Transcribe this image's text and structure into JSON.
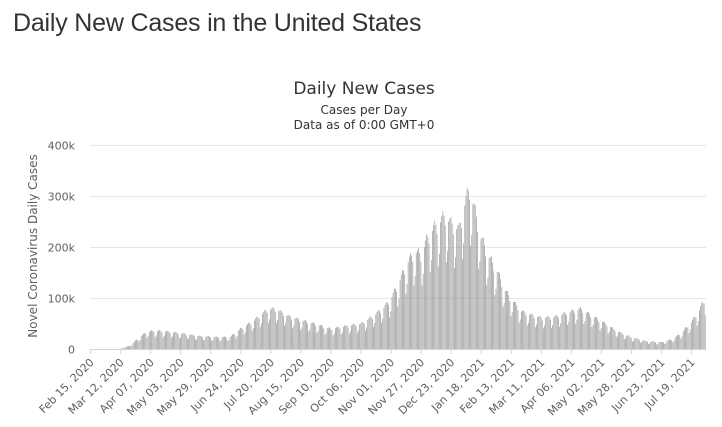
{
  "page": {
    "heading": "Daily New Cases in the United States"
  },
  "chart_data": {
    "type": "bar",
    "title": "Daily New Cases",
    "subtitle": "Cases per Day",
    "subtitle2": "Data as of 0:00 GMT+0",
    "xlabel": "",
    "ylabel": "Novel Coronavirus Daily Cases",
    "ylim": [
      0,
      400000
    ],
    "yticks": [
      0,
      100000,
      200000,
      300000,
      400000
    ],
    "ytick_labels": [
      "0",
      "100k",
      "200k",
      "300k",
      "400k"
    ],
    "xtick_labels": [
      "Feb 15, 2020",
      "Mar 12, 2020",
      "Apr 07, 2020",
      "May 03, 2020",
      "May 29, 2020",
      "Jun 24, 2020",
      "Jul 20, 2020",
      "Aug 15, 2020",
      "Sep 10, 2020",
      "Oct 06, 2020",
      "Nov 01, 2020",
      "Nov 27, 2020",
      "Dec 23, 2020",
      "Jan 18, 2021",
      "Feb 13, 2021",
      "Mar 11, 2021",
      "Apr 06, 2021",
      "May 02, 2021",
      "May 28, 2021",
      "Jun 23, 2021",
      "Jul 19, 2021"
    ],
    "start_date": "2020-02-15",
    "series": [
      {
        "name": "",
        "color": "#999999",
        "keypoints": [
          [
            "2020-02-15",
            0
          ],
          [
            "2020-03-05",
            100
          ],
          [
            "2020-03-12",
            400
          ],
          [
            "2020-03-20",
            6000
          ],
          [
            "2020-03-27",
            18000
          ],
          [
            "2020-04-03",
            30000
          ],
          [
            "2020-04-10",
            33000
          ],
          [
            "2020-04-24",
            31000
          ],
          [
            "2020-05-03",
            28000
          ],
          [
            "2020-05-20",
            23000
          ],
          [
            "2020-06-05",
            21000
          ],
          [
            "2020-06-15",
            22000
          ],
          [
            "2020-06-24",
            36000
          ],
          [
            "2020-07-05",
            50000
          ],
          [
            "2020-07-17",
            70000
          ],
          [
            "2020-07-24",
            72000
          ],
          [
            "2020-08-05",
            58000
          ],
          [
            "2020-08-15",
            52000
          ],
          [
            "2020-09-01",
            42000
          ],
          [
            "2020-09-10",
            36000
          ],
          [
            "2020-09-20",
            40000
          ],
          [
            "2020-10-06",
            45000
          ],
          [
            "2020-10-16",
            58000
          ],
          [
            "2020-10-26",
            75000
          ],
          [
            "2020-11-01",
            90000
          ],
          [
            "2020-11-08",
            120000
          ],
          [
            "2020-11-15",
            155000
          ],
          [
            "2020-11-22",
            175000
          ],
          [
            "2020-11-27",
            170000
          ],
          [
            "2020-12-05",
            210000
          ],
          [
            "2020-12-12",
            225000
          ],
          [
            "2020-12-18",
            240000
          ],
          [
            "2020-12-23",
            225000
          ],
          [
            "2020-12-30",
            215000
          ],
          [
            "2021-01-02",
            245000
          ],
          [
            "2021-01-08",
            290000
          ],
          [
            "2021-01-13",
            245000
          ],
          [
            "2021-01-18",
            200000
          ],
          [
            "2021-01-25",
            165000
          ],
          [
            "2021-02-01",
            140000
          ],
          [
            "2021-02-08",
            105000
          ],
          [
            "2021-02-13",
            90000
          ],
          [
            "2021-02-22",
            68000
          ],
          [
            "2021-03-01",
            62000
          ],
          [
            "2021-03-11",
            56000
          ],
          [
            "2021-03-22",
            57000
          ],
          [
            "2021-04-06",
            67000
          ],
          [
            "2021-04-14",
            72000
          ],
          [
            "2021-04-22",
            62000
          ],
          [
            "2021-05-02",
            50000
          ],
          [
            "2021-05-15",
            33000
          ],
          [
            "2021-05-28",
            21000
          ],
          [
            "2021-06-10",
            14000
          ],
          [
            "2021-06-23",
            12000
          ],
          [
            "2021-07-02",
            17000
          ],
          [
            "2021-07-10",
            28000
          ],
          [
            "2021-07-19",
            48000
          ],
          [
            "2021-07-26",
            70000
          ],
          [
            "2021-07-31",
            92000
          ]
        ]
      }
    ]
  }
}
